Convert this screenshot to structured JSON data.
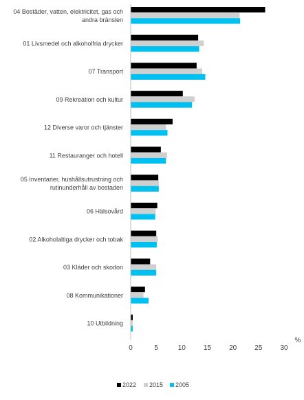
{
  "chart_data": {
    "type": "bar",
    "orientation": "horizontal",
    "unit_label": "%",
    "categories": [
      "04 Bostäder, vatten, elektricitet, gas och andra bränslen",
      "01 Livsmedel och alkoholfria drycker",
      "07 Transport",
      "09 Rekreation och kultur",
      "12 Diverse varor och tjänster",
      "11 Restauranger och hotell",
      "05 Inventarier, hushållsutrustning och rutinunderhåll av bostaden",
      "06 Hälsovård",
      "02 Alkoholaltiga drycker och tobak",
      "03 Kläder och skodon",
      "08 Kommunikationer",
      "10 Utbildning"
    ],
    "category_lines": [
      [
        "04 Bostäder, vatten, elektricitet, gas och",
        "andra bränslen"
      ],
      [
        "01 Livsmedel och alkoholfria drycker"
      ],
      [
        "07 Transport"
      ],
      [
        "09 Rekreation och kultur"
      ],
      [
        "12 Diverse varor och tjänster"
      ],
      [
        "11 Restauranger och hotell"
      ],
      [
        "05 Inventarier, hushållsutrustning och",
        "rutinunderhåll av bostaden"
      ],
      [
        "06 Hälsovård"
      ],
      [
        "02 Alkoholaltiga drycker och tobak"
      ],
      [
        "03 Kläder och skodon"
      ],
      [
        "08 Kommunikationer"
      ],
      [
        "10 Utbildning"
      ]
    ],
    "series": [
      {
        "name": "2022",
        "color": "#000000",
        "values": [
          26.3,
          13.2,
          12.9,
          10.2,
          8.2,
          5.9,
          5.4,
          5.2,
          5.0,
          3.8,
          2.8,
          0.4
        ]
      },
      {
        "name": "2015",
        "color": "#d0d0d0",
        "values": [
          21.3,
          14.3,
          14.0,
          12.5,
          6.9,
          7.1,
          5.5,
          4.9,
          5.3,
          5.0,
          2.5,
          0.4
        ]
      },
      {
        "name": "2005",
        "color": "#00c0f0",
        "values": [
          21.4,
          13.4,
          14.6,
          12.0,
          7.2,
          6.9,
          5.5,
          4.8,
          5.1,
          5.0,
          3.5,
          0.4
        ]
      }
    ],
    "xlim": [
      0,
      30
    ],
    "xticks": [
      0,
      5,
      10,
      15,
      20,
      25,
      30
    ],
    "grid": false,
    "legend_position": "bottom"
  }
}
